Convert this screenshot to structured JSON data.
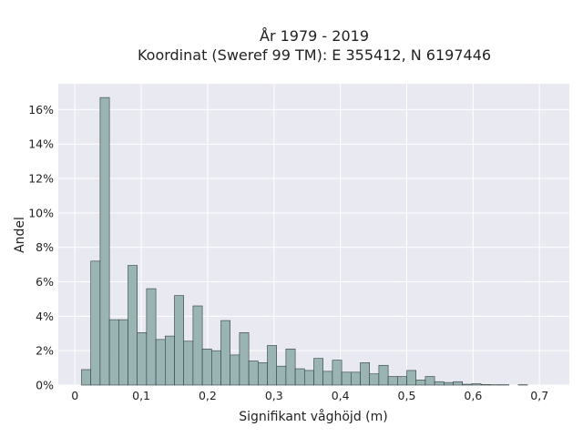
{
  "chart_data": {
    "type": "bar",
    "title_lines": [
      "År 1979 - 2019",
      "Koordinat (Sweref 99 TM): E 355412, N 6197446"
    ],
    "xlabel": "Signifikant våghöjd (m)",
    "ylabel": "Andel",
    "xlim": [
      -0.025,
      0.745
    ],
    "ylim": [
      0,
      17.5
    ],
    "x_ticks": [
      0,
      0.1,
      0.2,
      0.3,
      0.4,
      0.5,
      0.6,
      0.7
    ],
    "x_tick_labels": [
      "0",
      "0,1",
      "0,2",
      "0,3",
      "0,4",
      "0,5",
      "0,6",
      "0,7"
    ],
    "y_ticks": [
      0,
      2,
      4,
      6,
      8,
      10,
      12,
      14,
      16
    ],
    "y_tick_labels": [
      "0%",
      "2%",
      "4%",
      "6%",
      "8%",
      "10%",
      "12%",
      "14%",
      "16%"
    ],
    "grid": true,
    "bin_width": 0.014,
    "bin_start": 0.01,
    "values": [
      0.9,
      7.2,
      16.7,
      3.8,
      3.8,
      6.95,
      3.05,
      5.6,
      2.65,
      2.85,
      5.2,
      2.55,
      4.6,
      2.1,
      2.0,
      3.75,
      1.75,
      3.05,
      1.4,
      1.3,
      2.3,
      1.1,
      2.1,
      0.95,
      0.85,
      1.55,
      0.8,
      1.45,
      0.75,
      0.75,
      1.3,
      0.65,
      1.15,
      0.5,
      0.5,
      0.85,
      0.3,
      0.5,
      0.2,
      0.15,
      0.2,
      0.05,
      0.08,
      0.03,
      0.02,
      0.02,
      0,
      0.02,
      0,
      0,
      0
    ],
    "bar_color": "#9ab3b3",
    "edge_color": "#2f3f3f",
    "background_color": "#e9e9f1",
    "grid_color": "#ffffff"
  }
}
